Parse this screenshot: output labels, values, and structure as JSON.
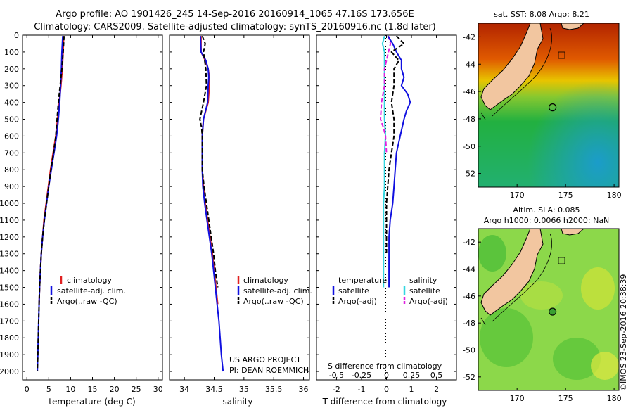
{
  "header": {
    "line1": "Argo profile: AO 1901426_245 14-Sep-2016 20160914_1065 47.16S 173.656E",
    "line2": "Climatology: CARS2009. Satellite-adjusted climatology: synTS_20160916.nc (1.8d later)"
  },
  "credit": "©IMOS 23-Sep-2016 20:38:39",
  "colors": {
    "climatology": "#e02020",
    "satellite": "#1010e0",
    "argo": "#000000",
    "salinity_satellite": "#33d6e0",
    "salinity_argo": "#e020e0"
  },
  "chart_data": [
    {
      "type": "line",
      "name": "temperature-profile",
      "xlabel": "temperature (deg C)",
      "ylim": [
        0,
        2050
      ],
      "xlim": [
        -1,
        31
      ],
      "xticks": [
        0,
        5,
        10,
        15,
        20,
        25,
        30
      ],
      "yticks": [
        0,
        100,
        200,
        300,
        400,
        500,
        600,
        700,
        800,
        900,
        1000,
        1100,
        1200,
        1300,
        1400,
        1500,
        1600,
        1700,
        1800,
        1900,
        2000
      ],
      "legend": [
        "climatology",
        "satellite-adj. clim.",
        "Argo(..raw -QC)"
      ],
      "series": [
        {
          "name": "climatology",
          "depth": [
            5,
            100,
            200,
            300,
            400,
            500,
            600,
            700,
            800,
            900,
            1000,
            1100,
            1200,
            1300,
            1400,
            1500,
            1600
          ],
          "values": [
            8.4,
            8.3,
            8.1,
            7.8,
            7.4,
            7.0,
            6.6,
            6.0,
            5.4,
            4.9,
            4.4,
            3.9,
            3.6,
            3.3,
            3.1,
            2.9,
            2.8
          ]
        },
        {
          "name": "satellite-adj. clim.",
          "depth": [
            5,
            100,
            200,
            300,
            400,
            500,
            600,
            700,
            800,
            900,
            1000,
            1100,
            1200,
            1300,
            1400,
            1500,
            1600,
            1700,
            1800,
            1900,
            2000
          ],
          "values": [
            8.2,
            8.0,
            7.9,
            7.7,
            7.5,
            7.2,
            6.8,
            6.2,
            5.6,
            5.0,
            4.5,
            4.0,
            3.6,
            3.3,
            3.1,
            2.9,
            2.8,
            2.7,
            2.6,
            2.5,
            2.4
          ]
        },
        {
          "name": "Argo(..raw -QC)",
          "depth": [
            5,
            100,
            200,
            300,
            400,
            500,
            600,
            700,
            800,
            900,
            1000,
            1100,
            1200,
            1300,
            1400,
            1500,
            1600,
            1700,
            1800,
            1900,
            2000
          ],
          "values": [
            8.5,
            8.3,
            8.0,
            7.6,
            7.2,
            6.9,
            6.6,
            6.1,
            5.5,
            5.0,
            4.5,
            4.0,
            3.6,
            3.3,
            3.1,
            2.9,
            2.8,
            2.7,
            2.6,
            2.5,
            2.4
          ]
        }
      ]
    },
    {
      "type": "line",
      "name": "salinity-profile",
      "xlabel": "salinity",
      "ylim": [
        0,
        2050
      ],
      "xlim": [
        33.75,
        36.1
      ],
      "xticks": [
        34,
        34.5,
        35,
        35.5,
        36
      ],
      "legend": [
        "climatology",
        "satellite-adj. clim.",
        "Argo(..raw -QC)"
      ],
      "annotation": [
        "US ARGO PROJECT",
        "PI: DEAN ROEMMICH"
      ],
      "series": [
        {
          "name": "climatology",
          "depth": [
            5,
            100,
            150,
            200,
            250,
            300,
            400,
            500,
            600,
            700,
            800,
            900,
            1000,
            1100,
            1200,
            1300,
            1400,
            1500,
            1600
          ],
          "values": [
            34.28,
            34.28,
            34.35,
            34.4,
            34.42,
            34.42,
            34.4,
            34.32,
            34.3,
            34.3,
            34.3,
            34.32,
            34.35,
            34.39,
            34.43,
            34.47,
            34.5,
            34.53,
            34.56
          ]
        },
        {
          "name": "satellite-adj. clim.",
          "depth": [
            5,
            100,
            150,
            200,
            250,
            300,
            400,
            500,
            600,
            700,
            800,
            900,
            1000,
            1100,
            1200,
            1300,
            1400,
            1500,
            1600,
            1700,
            1800,
            1900,
            2000
          ],
          "values": [
            34.27,
            34.28,
            34.36,
            34.4,
            34.41,
            34.4,
            34.39,
            34.32,
            34.3,
            34.3,
            34.3,
            34.31,
            34.34,
            34.38,
            34.42,
            34.46,
            34.49,
            34.52,
            34.55,
            34.58,
            34.6,
            34.62,
            34.65
          ]
        },
        {
          "name": "Argo(..raw -QC)",
          "depth": [
            5,
            50,
            100,
            200,
            300,
            400,
            500,
            550,
            600,
            800,
            900,
            1000,
            1100,
            1200,
            1300,
            1400,
            1500
          ],
          "values": [
            34.3,
            34.35,
            34.32,
            34.36,
            34.37,
            34.32,
            34.26,
            34.29,
            34.3,
            34.3,
            34.33,
            34.37,
            34.41,
            34.45,
            34.49,
            34.52,
            34.56
          ]
        }
      ]
    },
    {
      "type": "line",
      "name": "difference-profile",
      "xlabel": "T difference from climatology",
      "xlabel2": "S difference from climatology",
      "ylim": [
        0,
        2050
      ],
      "xlim": [
        -2.8,
        2.8
      ],
      "xticks": [
        -2,
        -1,
        0,
        1,
        2
      ],
      "xticks2": [
        -0.5,
        -0.25,
        0,
        0.25,
        0.5
      ],
      "xticks2_labels": [
        "-0.5",
        "-0.25",
        "0",
        "0.25",
        "0.5"
      ],
      "legend_temperature_title": "temperature",
      "legend_salinity_title": "salinity",
      "legend": [
        "satellite",
        "Argo(-adj)",
        "satellite",
        "Argo(-adj)"
      ],
      "series": [
        {
          "name": "temperature satellite",
          "depth": [
            5,
            50,
            100,
            150,
            200,
            250,
            300,
            350,
            400,
            450,
            500,
            600,
            700,
            800,
            900,
            1000,
            1100,
            1200,
            1300,
            1400,
            1500
          ],
          "values": [
            0.05,
            0.25,
            0.4,
            0.6,
            0.6,
            0.7,
            0.6,
            0.85,
            0.95,
            0.8,
            0.7,
            0.55,
            0.4,
            0.35,
            0.3,
            0.25,
            0.15,
            0.1,
            0.1,
            0.1,
            0.1
          ]
        },
        {
          "name": "temperature Argo(-adj)",
          "depth": [
            5,
            50,
            100,
            150,
            200,
            300,
            400,
            500,
            600,
            700,
            800,
            900,
            1000,
            1100,
            1200,
            1300
          ],
          "values": [
            0.4,
            0.7,
            0.2,
            0.5,
            0.3,
            0.3,
            0.2,
            0.3,
            0.3,
            0.2,
            0.1,
            0.05,
            0.0,
            0.0,
            0.0,
            0.0
          ]
        },
        {
          "name": "salinity satellite",
          "depth": [
            5,
            50,
            100,
            200,
            300,
            400,
            500,
            600,
            700,
            800,
            900,
            1000,
            1100,
            1200,
            1300,
            1400,
            1500
          ],
          "values": [
            -0.02,
            -0.04,
            -0.02,
            -0.02,
            -0.02,
            -0.02,
            -0.02,
            -0.01,
            -0.02,
            -0.02,
            -0.02,
            -0.03,
            -0.03,
            -0.03,
            -0.03,
            -0.03,
            -0.03
          ]
        },
        {
          "name": "salinity Argo(-adj)",
          "depth": [
            5,
            50,
            100,
            200,
            300,
            400,
            500,
            550,
            600,
            700
          ],
          "values": [
            0.02,
            0.04,
            0.02,
            -0.02,
            -0.02,
            -0.05,
            -0.06,
            -0.03,
            -0.01,
            0.0
          ]
        }
      ]
    },
    {
      "type": "heatmap",
      "name": "map-sst",
      "title": "sat. SST: 8.08 Argo: 8.21",
      "xlim": [
        166,
        180.5
      ],
      "ylim": [
        -53,
        -41
      ],
      "xticks": [
        170,
        175,
        180
      ],
      "yticks": [
        -42,
        -44,
        -46,
        -48,
        -50,
        -52
      ],
      "yticks_labels": [
        "-42",
        "-44",
        "-46",
        "-48",
        "-50",
        "-52"
      ],
      "marker": {
        "lon": 173.656,
        "lat": -47.16
      }
    },
    {
      "type": "heatmap",
      "name": "map-sla",
      "title": "Altim. SLA: 0.085",
      "title2": "Argo h1000: 0.0066 h2000: NaN",
      "xlim": [
        166,
        180.5
      ],
      "ylim": [
        -53,
        -41
      ],
      "xticks": [
        170,
        175,
        180
      ],
      "yticks": [
        -42,
        -44,
        -46,
        -48,
        -50,
        -52
      ],
      "yticks_labels": [
        "-42",
        "-44",
        "-46",
        "-48",
        "-50",
        "-52"
      ],
      "marker": {
        "lon": 173.656,
        "lat": -47.16
      }
    }
  ]
}
